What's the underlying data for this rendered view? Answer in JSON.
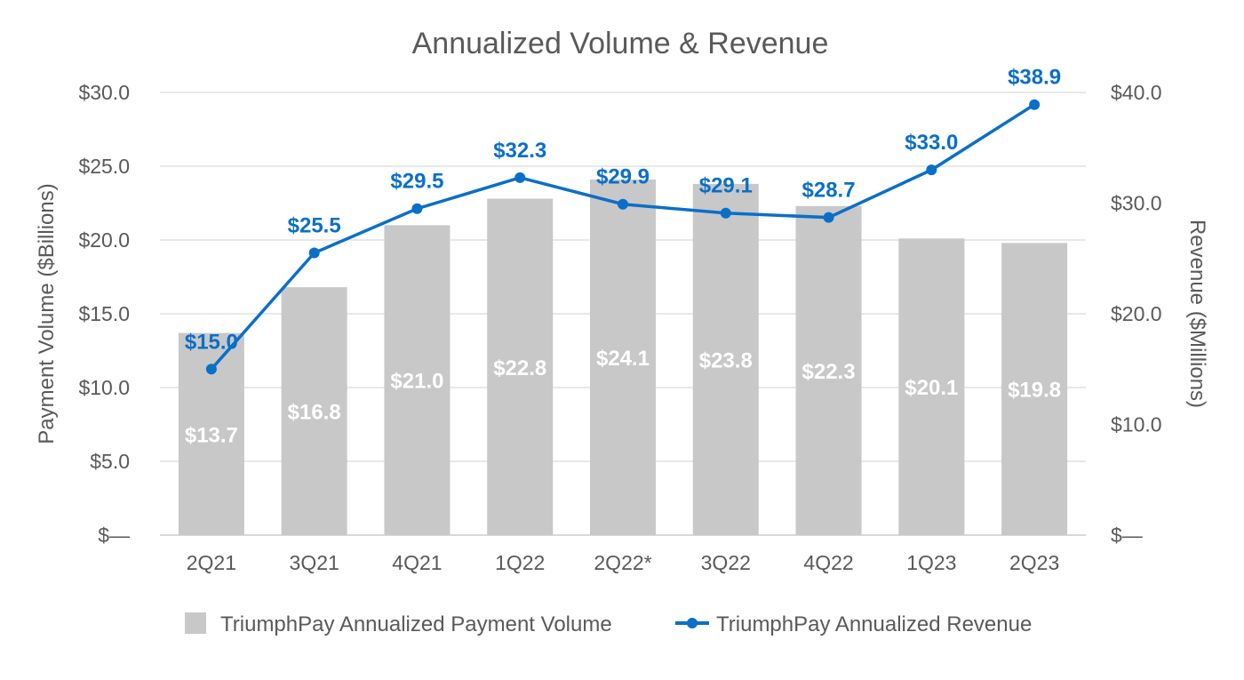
{
  "chart_data": {
    "type": "bar",
    "title": "Annualized Volume & Revenue",
    "categories": [
      "2Q21",
      "3Q21",
      "4Q21",
      "1Q22",
      "2Q22*",
      "3Q22",
      "4Q22",
      "1Q23",
      "2Q23"
    ],
    "series": [
      {
        "name": "TriumphPay Annualized Payment Volume",
        "type": "bar",
        "axis": "left",
        "values": [
          13.7,
          16.8,
          21.0,
          22.8,
          24.1,
          23.8,
          22.3,
          20.1,
          19.8
        ],
        "labels": [
          "$13.7",
          "$16.8",
          "$21.0",
          "$22.8",
          "$24.1",
          "$23.8",
          "$22.3",
          "$20.1",
          "$19.8"
        ],
        "color": "#c8c8c8"
      },
      {
        "name": "TriumphPay Annualized Revenue",
        "type": "line",
        "axis": "right",
        "values": [
          15.0,
          25.5,
          29.5,
          32.3,
          29.9,
          29.1,
          28.7,
          33.0,
          38.9
        ],
        "labels": [
          "$15.0",
          "$25.5",
          "$29.5",
          "$32.3",
          "$29.9",
          "$29.1",
          "$28.7",
          "$33.0",
          "$38.9"
        ],
        "color": "#0a6fc8"
      }
    ],
    "ylabel": "Payment Volume ($Billions)",
    "y2label": "Revenue ($Millions)",
    "ylim": [
      0,
      30
    ],
    "y2lim": [
      0,
      40
    ],
    "yticks": [
      "$—",
      "$5.0",
      "$10.0",
      "$15.0",
      "$20.0",
      "$25.0",
      "$30.0"
    ],
    "y2ticks": [
      "$—",
      "$10.0",
      "$20.0",
      "$30.0",
      "$40.0"
    ],
    "grid": true,
    "legend": "bottom"
  }
}
